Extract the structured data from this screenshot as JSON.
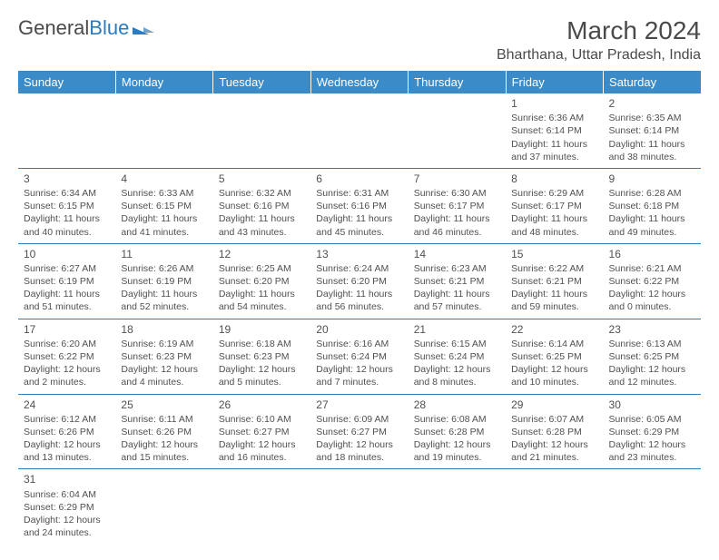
{
  "logo": {
    "part1": "General",
    "part2": "Blue"
  },
  "title": "March 2024",
  "location": "Bharthana, Uttar Pradesh, India",
  "weekdays": [
    "Sunday",
    "Monday",
    "Tuesday",
    "Wednesday",
    "Thursday",
    "Friday",
    "Saturday"
  ],
  "colors": {
    "header_bg": "#3b8bc8",
    "header_fg": "#ffffff",
    "text": "#505050",
    "rule": "#2b7bbf",
    "brand_blue": "#2b7bbf"
  },
  "weeks": [
    [
      null,
      null,
      null,
      null,
      null,
      {
        "day": "1",
        "sunrise": "Sunrise: 6:36 AM",
        "sunset": "Sunset: 6:14 PM",
        "daylight1": "Daylight: 11 hours",
        "daylight2": "and 37 minutes."
      },
      {
        "day": "2",
        "sunrise": "Sunrise: 6:35 AM",
        "sunset": "Sunset: 6:14 PM",
        "daylight1": "Daylight: 11 hours",
        "daylight2": "and 38 minutes."
      }
    ],
    [
      {
        "day": "3",
        "sunrise": "Sunrise: 6:34 AM",
        "sunset": "Sunset: 6:15 PM",
        "daylight1": "Daylight: 11 hours",
        "daylight2": "and 40 minutes."
      },
      {
        "day": "4",
        "sunrise": "Sunrise: 6:33 AM",
        "sunset": "Sunset: 6:15 PM",
        "daylight1": "Daylight: 11 hours",
        "daylight2": "and 41 minutes."
      },
      {
        "day": "5",
        "sunrise": "Sunrise: 6:32 AM",
        "sunset": "Sunset: 6:16 PM",
        "daylight1": "Daylight: 11 hours",
        "daylight2": "and 43 minutes."
      },
      {
        "day": "6",
        "sunrise": "Sunrise: 6:31 AM",
        "sunset": "Sunset: 6:16 PM",
        "daylight1": "Daylight: 11 hours",
        "daylight2": "and 45 minutes."
      },
      {
        "day": "7",
        "sunrise": "Sunrise: 6:30 AM",
        "sunset": "Sunset: 6:17 PM",
        "daylight1": "Daylight: 11 hours",
        "daylight2": "and 46 minutes."
      },
      {
        "day": "8",
        "sunrise": "Sunrise: 6:29 AM",
        "sunset": "Sunset: 6:17 PM",
        "daylight1": "Daylight: 11 hours",
        "daylight2": "and 48 minutes."
      },
      {
        "day": "9",
        "sunrise": "Sunrise: 6:28 AM",
        "sunset": "Sunset: 6:18 PM",
        "daylight1": "Daylight: 11 hours",
        "daylight2": "and 49 minutes."
      }
    ],
    [
      {
        "day": "10",
        "sunrise": "Sunrise: 6:27 AM",
        "sunset": "Sunset: 6:19 PM",
        "daylight1": "Daylight: 11 hours",
        "daylight2": "and 51 minutes."
      },
      {
        "day": "11",
        "sunrise": "Sunrise: 6:26 AM",
        "sunset": "Sunset: 6:19 PM",
        "daylight1": "Daylight: 11 hours",
        "daylight2": "and 52 minutes."
      },
      {
        "day": "12",
        "sunrise": "Sunrise: 6:25 AM",
        "sunset": "Sunset: 6:20 PM",
        "daylight1": "Daylight: 11 hours",
        "daylight2": "and 54 minutes."
      },
      {
        "day": "13",
        "sunrise": "Sunrise: 6:24 AM",
        "sunset": "Sunset: 6:20 PM",
        "daylight1": "Daylight: 11 hours",
        "daylight2": "and 56 minutes."
      },
      {
        "day": "14",
        "sunrise": "Sunrise: 6:23 AM",
        "sunset": "Sunset: 6:21 PM",
        "daylight1": "Daylight: 11 hours",
        "daylight2": "and 57 minutes."
      },
      {
        "day": "15",
        "sunrise": "Sunrise: 6:22 AM",
        "sunset": "Sunset: 6:21 PM",
        "daylight1": "Daylight: 11 hours",
        "daylight2": "and 59 minutes."
      },
      {
        "day": "16",
        "sunrise": "Sunrise: 6:21 AM",
        "sunset": "Sunset: 6:22 PM",
        "daylight1": "Daylight: 12 hours",
        "daylight2": "and 0 minutes."
      }
    ],
    [
      {
        "day": "17",
        "sunrise": "Sunrise: 6:20 AM",
        "sunset": "Sunset: 6:22 PM",
        "daylight1": "Daylight: 12 hours",
        "daylight2": "and 2 minutes."
      },
      {
        "day": "18",
        "sunrise": "Sunrise: 6:19 AM",
        "sunset": "Sunset: 6:23 PM",
        "daylight1": "Daylight: 12 hours",
        "daylight2": "and 4 minutes."
      },
      {
        "day": "19",
        "sunrise": "Sunrise: 6:18 AM",
        "sunset": "Sunset: 6:23 PM",
        "daylight1": "Daylight: 12 hours",
        "daylight2": "and 5 minutes."
      },
      {
        "day": "20",
        "sunrise": "Sunrise: 6:16 AM",
        "sunset": "Sunset: 6:24 PM",
        "daylight1": "Daylight: 12 hours",
        "daylight2": "and 7 minutes."
      },
      {
        "day": "21",
        "sunrise": "Sunrise: 6:15 AM",
        "sunset": "Sunset: 6:24 PM",
        "daylight1": "Daylight: 12 hours",
        "daylight2": "and 8 minutes."
      },
      {
        "day": "22",
        "sunrise": "Sunrise: 6:14 AM",
        "sunset": "Sunset: 6:25 PM",
        "daylight1": "Daylight: 12 hours",
        "daylight2": "and 10 minutes."
      },
      {
        "day": "23",
        "sunrise": "Sunrise: 6:13 AM",
        "sunset": "Sunset: 6:25 PM",
        "daylight1": "Daylight: 12 hours",
        "daylight2": "and 12 minutes."
      }
    ],
    [
      {
        "day": "24",
        "sunrise": "Sunrise: 6:12 AM",
        "sunset": "Sunset: 6:26 PM",
        "daylight1": "Daylight: 12 hours",
        "daylight2": "and 13 minutes."
      },
      {
        "day": "25",
        "sunrise": "Sunrise: 6:11 AM",
        "sunset": "Sunset: 6:26 PM",
        "daylight1": "Daylight: 12 hours",
        "daylight2": "and 15 minutes."
      },
      {
        "day": "26",
        "sunrise": "Sunrise: 6:10 AM",
        "sunset": "Sunset: 6:27 PM",
        "daylight1": "Daylight: 12 hours",
        "daylight2": "and 16 minutes."
      },
      {
        "day": "27",
        "sunrise": "Sunrise: 6:09 AM",
        "sunset": "Sunset: 6:27 PM",
        "daylight1": "Daylight: 12 hours",
        "daylight2": "and 18 minutes."
      },
      {
        "day": "28",
        "sunrise": "Sunrise: 6:08 AM",
        "sunset": "Sunset: 6:28 PM",
        "daylight1": "Daylight: 12 hours",
        "daylight2": "and 19 minutes."
      },
      {
        "day": "29",
        "sunrise": "Sunrise: 6:07 AM",
        "sunset": "Sunset: 6:28 PM",
        "daylight1": "Daylight: 12 hours",
        "daylight2": "and 21 minutes."
      },
      {
        "day": "30",
        "sunrise": "Sunrise: 6:05 AM",
        "sunset": "Sunset: 6:29 PM",
        "daylight1": "Daylight: 12 hours",
        "daylight2": "and 23 minutes."
      }
    ],
    [
      {
        "day": "31",
        "sunrise": "Sunrise: 6:04 AM",
        "sunset": "Sunset: 6:29 PM",
        "daylight1": "Daylight: 12 hours",
        "daylight2": "and 24 minutes."
      },
      null,
      null,
      null,
      null,
      null,
      null
    ]
  ]
}
